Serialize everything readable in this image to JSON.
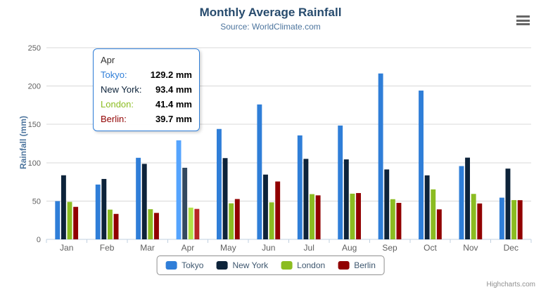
{
  "title": "Monthly Average Rainfall",
  "subtitle": "Source: WorldClimate.com",
  "credit_label": "Highcharts.com",
  "menu_icon": "hamburger-icon",
  "chart_data": {
    "type": "bar",
    "title": "Monthly Average Rainfall",
    "subtitle": "Source: WorldClimate.com",
    "xlabel": "",
    "ylabel": "Rainfall (mm)",
    "ylim": [
      0,
      250
    ],
    "ytick_interval": 50,
    "grid": true,
    "legend_position": "bottom",
    "hovered_category": "Apr",
    "categories": [
      "Jan",
      "Feb",
      "Mar",
      "Apr",
      "May",
      "Jun",
      "Jul",
      "Aug",
      "Sep",
      "Oct",
      "Nov",
      "Dec"
    ],
    "series": [
      {
        "name": "Tokyo",
        "color": "#2f7ed8",
        "values": [
          49.9,
          71.5,
          106.4,
          129.2,
          144.0,
          176.0,
          135.6,
          148.5,
          216.4,
          194.1,
          95.6,
          54.4
        ]
      },
      {
        "name": "New York",
        "color": "#0d233a",
        "values": [
          83.6,
          78.8,
          98.5,
          93.4,
          106.0,
          84.5,
          105.0,
          104.3,
          91.2,
          83.5,
          106.6,
          92.3
        ]
      },
      {
        "name": "London",
        "color": "#8bbc21",
        "values": [
          48.9,
          38.8,
          39.3,
          41.4,
          47.0,
          48.3,
          59.0,
          59.6,
          52.4,
          65.2,
          59.3,
          51.2
        ]
      },
      {
        "name": "Berlin",
        "color": "#910000",
        "values": [
          42.4,
          33.2,
          34.5,
          39.7,
          52.6,
          75.5,
          57.4,
          60.4,
          47.6,
          39.1,
          46.8,
          51.1
        ]
      }
    ]
  },
  "tooltip": {
    "header": "Apr",
    "border_color": "#2f7ed8",
    "rows": [
      {
        "label": "Tokyo:",
        "value": "129.2 mm",
        "color": "#2f7ed8"
      },
      {
        "label": "New York:",
        "value": "93.4 mm",
        "color": "#0d233a"
      },
      {
        "label": "London:",
        "value": "41.4 mm",
        "color": "#8bbc21"
      },
      {
        "label": "Berlin:",
        "value": "39.7 mm",
        "color": "#910000"
      }
    ]
  },
  "colors": {
    "title": "#274b6d",
    "subtitle": "#4d759e",
    "axis_labels": "#606060",
    "gridline": "#d8d8d8",
    "axis_line": "#c0d0e0",
    "legend_text": "#3e576f",
    "legend_border": "#909090",
    "credit": "#909090"
  }
}
